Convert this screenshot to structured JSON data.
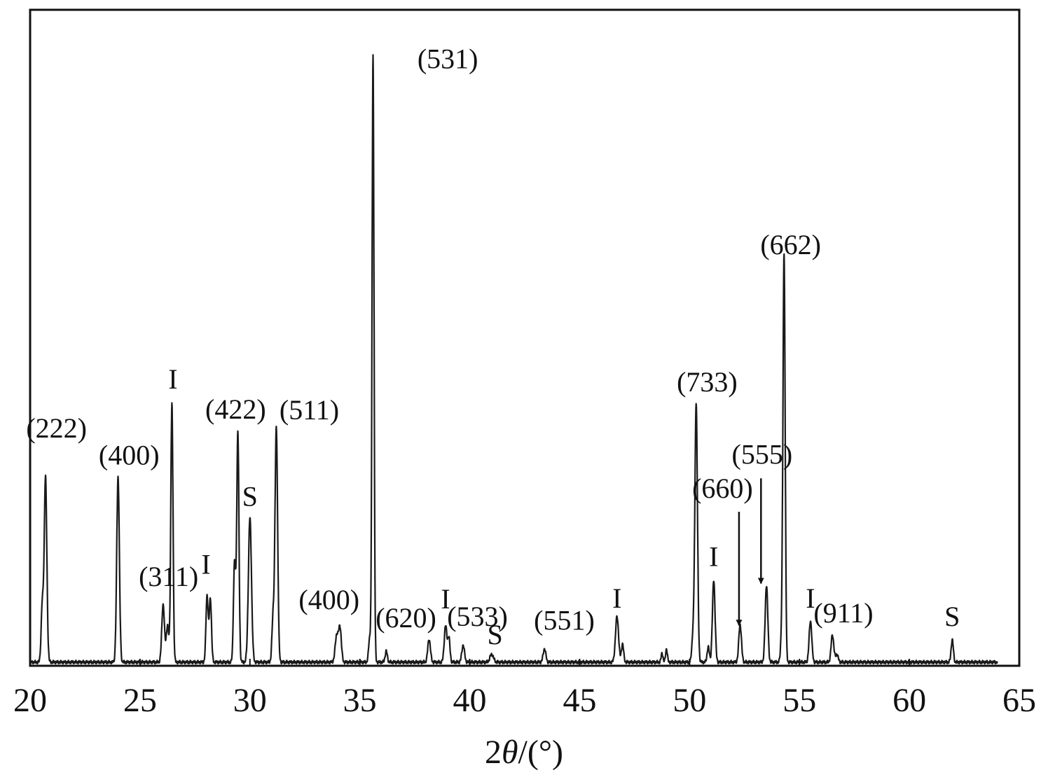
{
  "chart_data": {
    "type": "line",
    "title": "",
    "xlabel_prefix": "2",
    "xlabel_theta": "θ",
    "xlabel_suffix": "/(°)",
    "ylabel": "",
    "xlim": [
      20,
      65
    ],
    "ylim": [
      0,
      100
    ],
    "x_ticks": [
      20,
      25,
      30,
      35,
      40,
      45,
      50,
      55,
      60,
      65
    ],
    "grid": false,
    "legend": "none",
    "series": [
      {
        "peaks": [
          {
            "x": 20.7,
            "y": 30.5,
            "w": 0.06
          },
          {
            "x": 20.55,
            "y": 9,
            "w": 0.05
          },
          {
            "x": 24.0,
            "y": 30.5,
            "w": 0.06
          },
          {
            "x": 26.05,
            "y": 9.5,
            "w": 0.06
          },
          {
            "x": 26.25,
            "y": 6,
            "w": 0.06
          },
          {
            "x": 26.45,
            "y": 42.5,
            "w": 0.05
          },
          {
            "x": 28.05,
            "y": 11,
            "w": 0.05
          },
          {
            "x": 28.2,
            "y": 10.5,
            "w": 0.05
          },
          {
            "x": 29.3,
            "y": 16.5,
            "w": 0.05
          },
          {
            "x": 29.45,
            "y": 38,
            "w": 0.05
          },
          {
            "x": 30.0,
            "y": 23.8,
            "w": 0.07
          },
          {
            "x": 31.2,
            "y": 38.5,
            "w": 0.06
          },
          {
            "x": 31.05,
            "y": 7,
            "w": 0.05
          },
          {
            "x": 33.95,
            "y": 4.5,
            "w": 0.07
          },
          {
            "x": 34.1,
            "y": 5.5,
            "w": 0.06
          },
          {
            "x": 35.6,
            "y": 100,
            "w": 0.045
          },
          {
            "x": 35.45,
            "y": 4,
            "w": 0.05
          },
          {
            "x": 36.2,
            "y": 1.8,
            "w": 0.05
          },
          {
            "x": 38.15,
            "y": 3.8,
            "w": 0.06
          },
          {
            "x": 38.9,
            "y": 6,
            "w": 0.06
          },
          {
            "x": 39.05,
            "y": 4,
            "w": 0.05
          },
          {
            "x": 39.7,
            "y": 2.8,
            "w": 0.06
          },
          {
            "x": 41.0,
            "y": 1.3,
            "w": 0.08
          },
          {
            "x": 43.4,
            "y": 2.2,
            "w": 0.06
          },
          {
            "x": 46.7,
            "y": 7.5,
            "w": 0.07
          },
          {
            "x": 46.95,
            "y": 3,
            "w": 0.05
          },
          {
            "x": 48.75,
            "y": 1.5,
            "w": 0.04
          },
          {
            "x": 48.95,
            "y": 2.2,
            "w": 0.04
          },
          {
            "x": 50.3,
            "y": 42.5,
            "w": 0.06
          },
          {
            "x": 50.15,
            "y": 4,
            "w": 0.05
          },
          {
            "x": 50.85,
            "y": 2.5,
            "w": 0.05
          },
          {
            "x": 51.1,
            "y": 13.5,
            "w": 0.06
          },
          {
            "x": 52.3,
            "y": 6.2,
            "w": 0.06
          },
          {
            "x": 53.5,
            "y": 12.7,
            "w": 0.06
          },
          {
            "x": 54.3,
            "y": 66.5,
            "w": 0.05
          },
          {
            "x": 54.2,
            "y": 5,
            "w": 0.05
          },
          {
            "x": 55.5,
            "y": 6.8,
            "w": 0.06
          },
          {
            "x": 56.5,
            "y": 4.5,
            "w": 0.06
          },
          {
            "x": 56.7,
            "y": 1.3,
            "w": 0.06
          },
          {
            "x": 61.95,
            "y": 3.7,
            "w": 0.05
          }
        ]
      }
    ],
    "annotations": [
      {
        "text": "(222)",
        "x": 21.2,
        "y": 37.2
      },
      {
        "text": "(400)",
        "x": 24.5,
        "y": 32.8
      },
      {
        "text": "I",
        "x": 26.5,
        "y": 45.3
      },
      {
        "text": "(311)",
        "x": 26.3,
        "y": 12.8
      },
      {
        "text": "I",
        "x": 28.0,
        "y": 14.8
      },
      {
        "text": "(422)",
        "x": 29.35,
        "y": 40.3
      },
      {
        "text": "(511)",
        "x": 32.7,
        "y": 40.2
      },
      {
        "text": "S",
        "x": 30.0,
        "y": 26.0
      },
      {
        "text": "(400)",
        "x": 33.6,
        "y": 9.0
      },
      {
        "text": "(531)",
        "x": 39.0,
        "y": 98.0
      },
      {
        "text": "(620)",
        "x": 37.1,
        "y": 6.0
      },
      {
        "text": "I",
        "x": 38.9,
        "y": 9.1
      },
      {
        "text": "(533)",
        "x": 40.35,
        "y": 6.2
      },
      {
        "text": "S",
        "x": 41.15,
        "y": 3.2
      },
      {
        "text": "(551)",
        "x": 44.3,
        "y": 5.6
      },
      {
        "text": "I",
        "x": 46.7,
        "y": 9.2
      },
      {
        "text": "(733)",
        "x": 50.8,
        "y": 44.8
      },
      {
        "text": "(555)",
        "x": 53.3,
        "y": 32.9
      },
      {
        "text": "(660)",
        "x": 51.5,
        "y": 27.3
      },
      {
        "text": "I",
        "x": 51.1,
        "y": 16.1
      },
      {
        "text": "(662)",
        "x": 54.6,
        "y": 67.4
      },
      {
        "text": "I",
        "x": 55.5,
        "y": 9.2
      },
      {
        "text": "(911)",
        "x": 57.0,
        "y": 6.8
      },
      {
        "text": "S",
        "x": 61.95,
        "y": 6.2
      }
    ],
    "arrows": [
      {
        "x": 52.25,
        "y_from": 25.0,
        "y_to": 6.3
      },
      {
        "x": 53.25,
        "y_from": 30.5,
        "y_to": 13.2
      }
    ]
  }
}
